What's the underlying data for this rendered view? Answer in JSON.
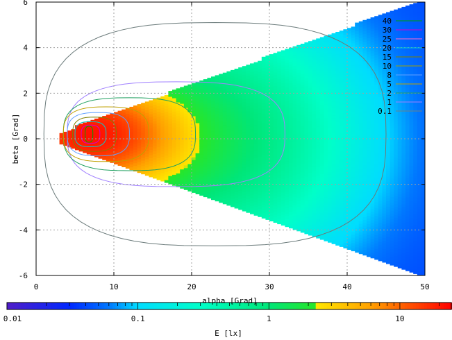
{
  "chart_data": {
    "type": "heatmap",
    "title": "",
    "xlabel": "alpha [Grad]",
    "ylabel": "beta [Grad]",
    "xlim": [
      0,
      50
    ],
    "ylim": [
      6,
      -6
    ],
    "x_ticks": [
      "0",
      "10",
      "20",
      "30",
      "40",
      "50"
    ],
    "y_ticks": [
      "-6",
      "-4",
      "-2",
      "0",
      "2",
      "4",
      "6"
    ],
    "grid": true,
    "legend_position": "top-right",
    "contour_levels": [
      {
        "label": "40",
        "color": "#00a000"
      },
      {
        "label": "30",
        "color": "#d000d0"
      },
      {
        "label": "25",
        "color": "#ff66cc"
      },
      {
        "label": "20",
        "color": "#00d0d0"
      },
      {
        "label": "15",
        "color": "#808000"
      },
      {
        "label": "10",
        "color": "#a0a000"
      },
      {
        "label": "8",
        "color": "#60a0ff"
      },
      {
        "label": "5",
        "color": "#c0a000"
      },
      {
        "label": "2",
        "color": "#20a060"
      },
      {
        "label": "1",
        "color": "#a080ff"
      },
      {
        "label": "0.1",
        "color": "#708080"
      }
    ],
    "colorbar": {
      "label": "E [lx]",
      "scale": "log",
      "range": [
        0.01,
        25
      ],
      "tick_labels": [
        "0.01",
        "0.1",
        "1",
        "10"
      ],
      "tick_values": [
        0.01,
        0.1,
        1,
        10
      ]
    },
    "regions": [
      {
        "level": "0.1",
        "alpha_range": [
          3,
          50
        ],
        "beta_half_width_at_max": 6,
        "color": "#0040ff"
      },
      {
        "level": "1",
        "alpha_range": [
          3,
          33
        ],
        "color": "#00e0e0"
      },
      {
        "level": "2",
        "alpha_range": [
          3,
          21
        ],
        "color": "#00e050"
      },
      {
        "level": "5",
        "alpha_range": [
          4,
          14
        ],
        "color": "#ffb000"
      },
      {
        "level": "15",
        "alpha_range": [
          5,
          10
        ],
        "color": "#ff3000"
      },
      {
        "level": "40",
        "alpha_range": [
          6,
          8
        ],
        "color": "#ff0000"
      }
    ]
  }
}
